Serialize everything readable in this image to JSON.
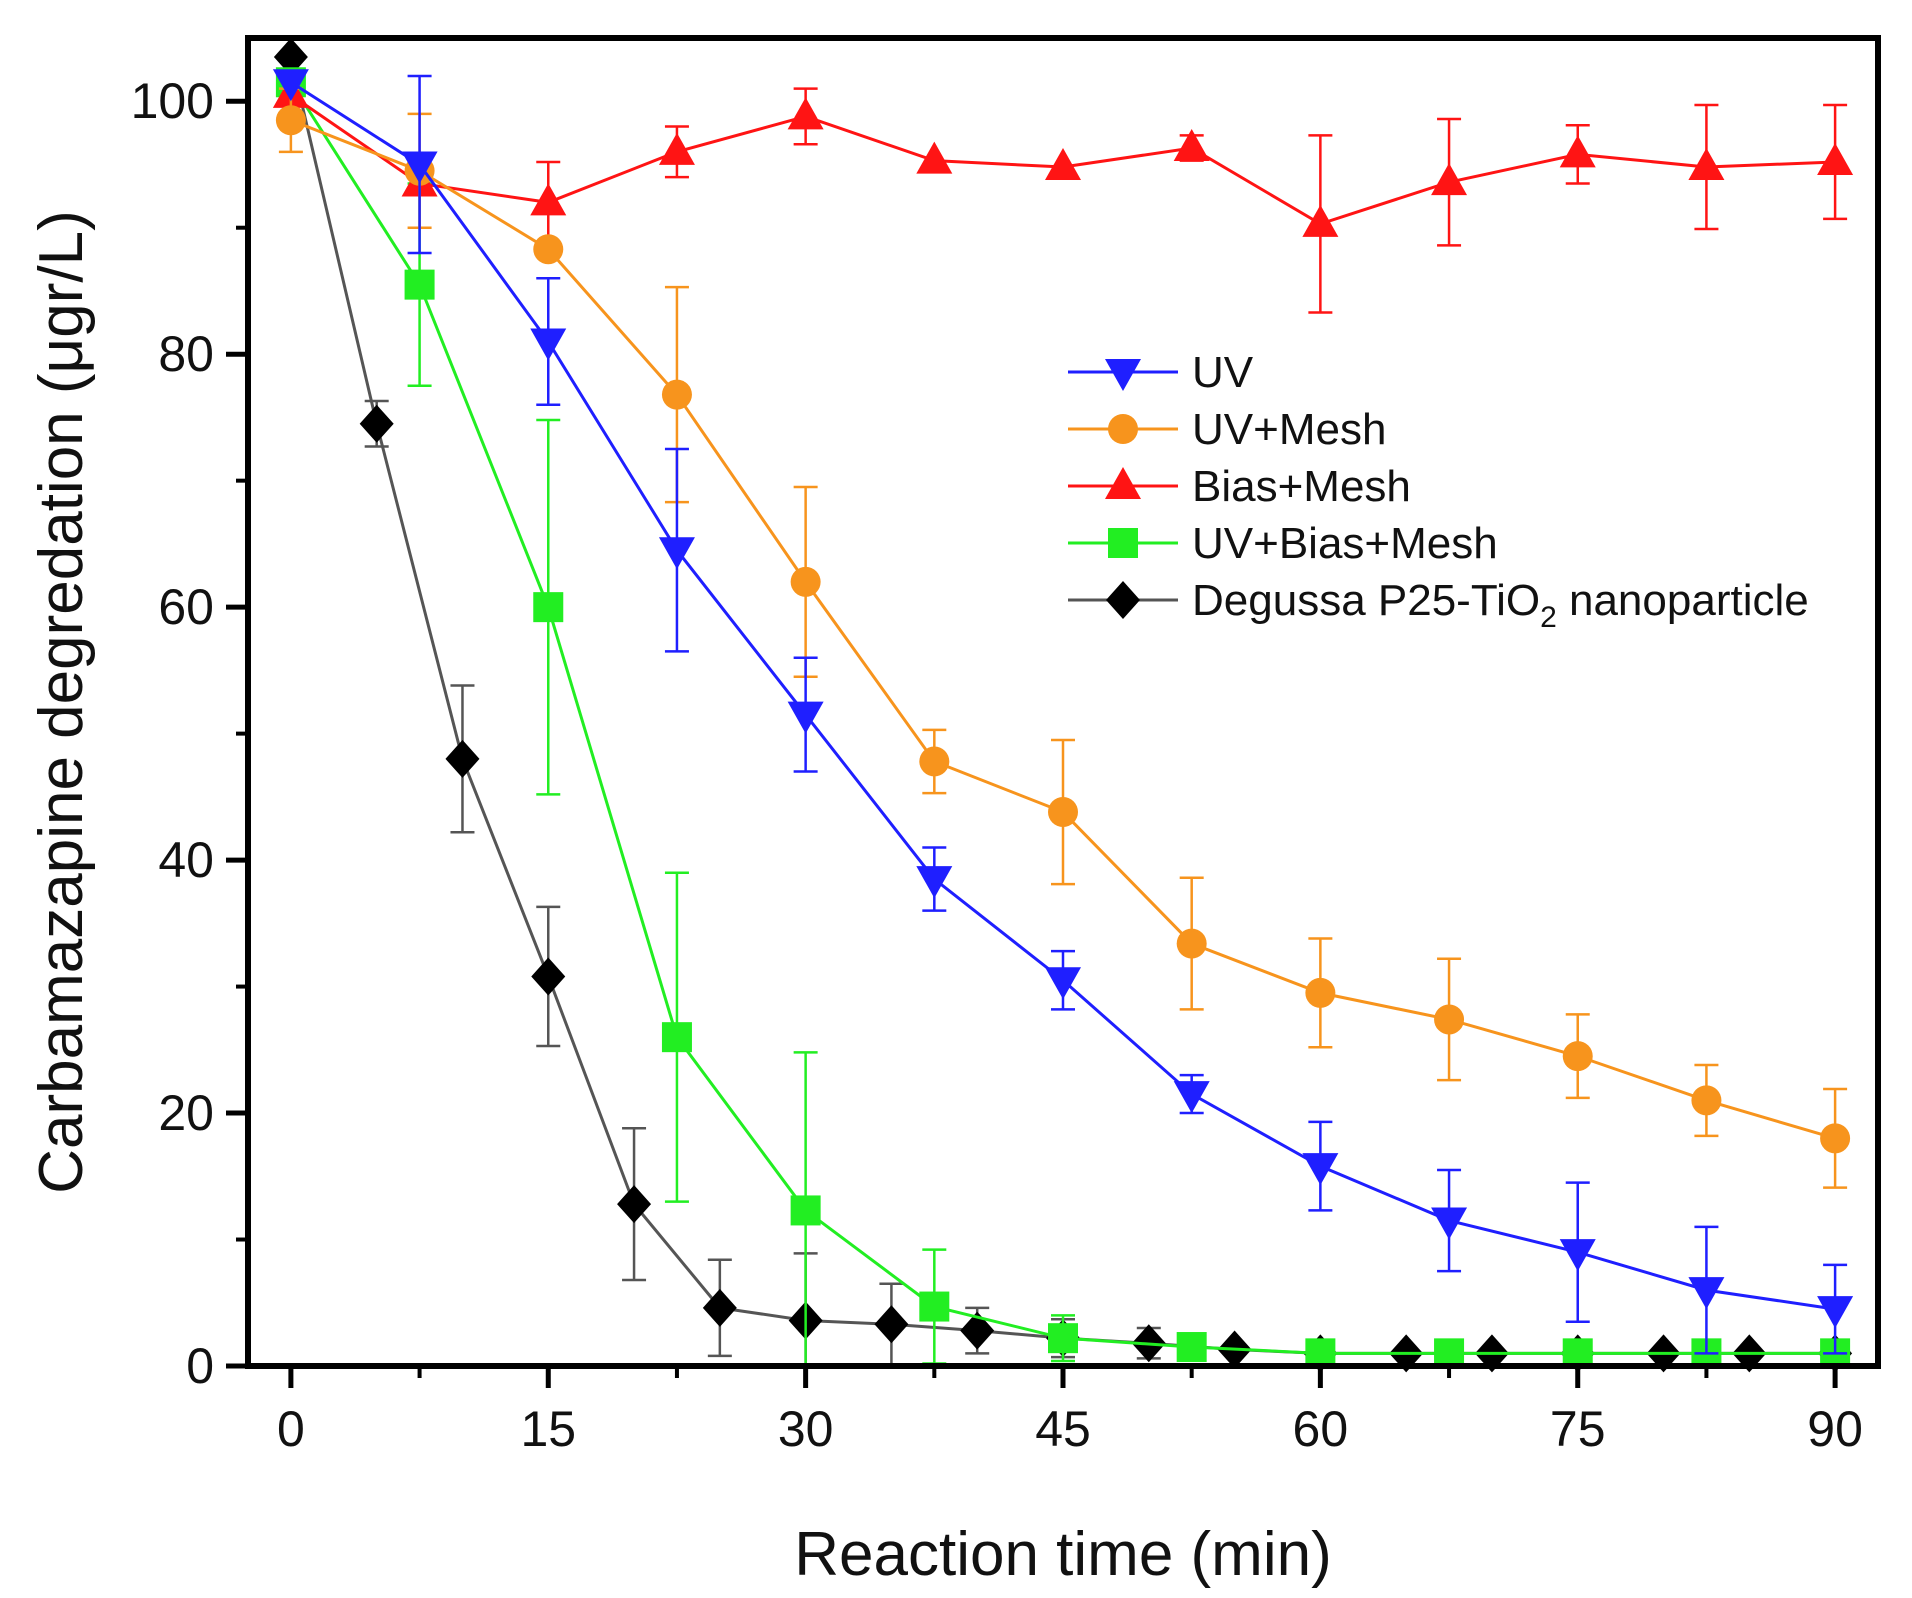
{
  "chart_data": {
    "type": "line",
    "title": "",
    "xlabel": "Reaction time (min)",
    "ylabel": "Carbamazapine degredation (μgr/L)",
    "xlim": [
      -2.5,
      92.5
    ],
    "ylim": [
      0,
      105
    ],
    "xticks": [
      0,
      15,
      30,
      45,
      60,
      75,
      90
    ],
    "xtick_labels": [
      "0",
      "15",
      "30",
      "45",
      "60",
      "75",
      "90"
    ],
    "yticks": [
      0,
      20,
      40,
      60,
      80,
      100
    ],
    "ytick_labels": [
      "0",
      "20",
      "40",
      "60",
      "80",
      "100"
    ],
    "grid": false,
    "legend_position": "center-right",
    "series": [
      {
        "name": "UV",
        "label": "UV",
        "color": "#1f1fff",
        "marker": "triangle-down",
        "x": [
          0,
          7.5,
          15,
          22.5,
          30,
          37.5,
          45,
          52.5,
          60,
          67.5,
          75,
          82.5,
          90
        ],
        "y": [
          101.5,
          95,
          81,
          64.5,
          51.5,
          38.5,
          30.5,
          21.5,
          15.8,
          11.5,
          9,
          6,
          4.5
        ],
        "err": [
          0,
          7,
          5,
          8,
          4.5,
          2.5,
          2.3,
          1.5,
          3.5,
          4,
          5.5,
          5,
          3.5
        ]
      },
      {
        "name": "UV+Mesh",
        "label": "UV+Mesh",
        "color": "#f7941d",
        "marker": "circle",
        "x": [
          0,
          7.5,
          15,
          22.5,
          30,
          37.5,
          45,
          52.5,
          60,
          67.5,
          75,
          82.5,
          90
        ],
        "y": [
          98.5,
          94.5,
          88.3,
          76.8,
          62,
          47.8,
          43.8,
          33.4,
          29.5,
          27.4,
          24.5,
          21,
          18
        ],
        "err": [
          2.5,
          4.5,
          0,
          8.5,
          7.5,
          2.5,
          5.7,
          5.2,
          4.3,
          4.8,
          3.3,
          2.8,
          3.9
        ]
      },
      {
        "name": "Bias+Mesh",
        "label": "Bias+Mesh",
        "color": "#ff1414",
        "marker": "triangle-up",
        "x": [
          0,
          7.5,
          15,
          22.5,
          30,
          37.5,
          45,
          52.5,
          60,
          67.5,
          75,
          82.5,
          90
        ],
        "y": [
          100.5,
          93.5,
          92,
          96,
          98.8,
          95.3,
          94.8,
          96.3,
          90.3,
          93.6,
          95.8,
          94.8,
          95.2
        ],
        "err": [
          0,
          0,
          3.2,
          2,
          2.2,
          0,
          0,
          1,
          7,
          5,
          2.3,
          4.9,
          4.5
        ]
      },
      {
        "name": "UV+Bias+Mesh",
        "label": "UV+Bias+Mesh",
        "color": "#22ee22",
        "marker": "square",
        "x": [
          0,
          7.5,
          15,
          22.5,
          30,
          37.5,
          45,
          52.5,
          60,
          67.5,
          75,
          82.5,
          90
        ],
        "y": [
          101.5,
          85.5,
          60,
          26,
          12.3,
          4.7,
          2.2,
          1.5,
          1,
          1,
          1,
          1,
          1
        ],
        "err": [
          0,
          8,
          14.8,
          13,
          12.5,
          4.5,
          1.8,
          0,
          0,
          0,
          0,
          0,
          0
        ]
      },
      {
        "name": "Degussa P25-TiO2 nanoparticle",
        "label_main": "Degussa P25-TiO",
        "label_sub": "2",
        "label_tail": " nanoparticle",
        "color": "#000000",
        "line_color": "#555555",
        "marker": "diamond",
        "x": [
          0,
          5,
          10,
          15,
          20,
          25,
          30,
          35,
          40,
          45,
          50,
          55,
          60,
          65,
          70,
          75,
          80,
          85,
          90
        ],
        "y": [
          103.5,
          74.5,
          48,
          30.8,
          12.8,
          4.6,
          3.6,
          3.3,
          2.8,
          2.2,
          1.8,
          1.3,
          1,
          1,
          1,
          1,
          1,
          1,
          1
        ],
        "err": [
          0,
          1.8,
          5.8,
          5.5,
          6,
          3.8,
          5.3,
          3.2,
          1.8,
          1.5,
          1.2,
          0,
          0,
          0,
          0,
          0,
          0,
          0,
          0
        ]
      }
    ]
  }
}
